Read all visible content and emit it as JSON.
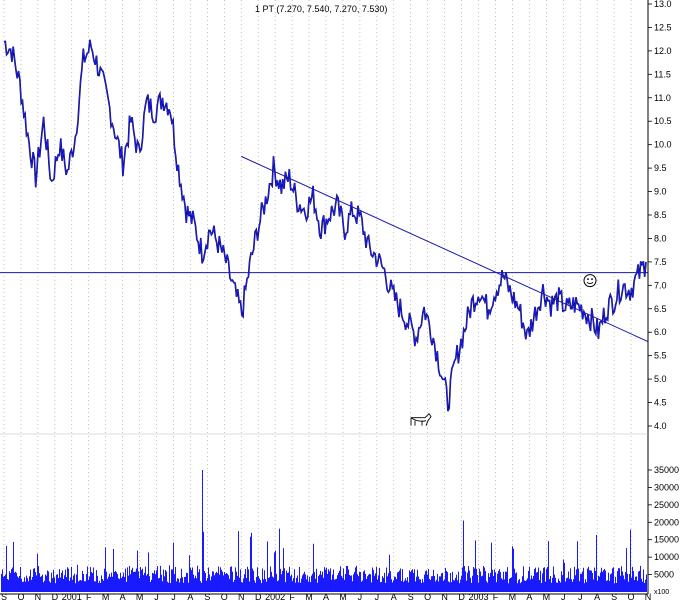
{
  "title": "1 PT (7.270, 7.540, 7.270, 7.530)",
  "chart_data": [
    {
      "type": "line",
      "title": "1 PT (7.270, 7.540, 7.270, 7.530)",
      "xlabel": "",
      "ylabel": "",
      "ylim": [
        4.0,
        13.0
      ],
      "y_ticks": [
        "4.0",
        "4.5",
        "5.0",
        "5.5",
        "6.0",
        "6.5",
        "7.0",
        "7.5",
        "8.0",
        "8.5",
        "9.0",
        "9.5",
        "10.0",
        "10.5",
        "11.0",
        "11.5",
        "12.0",
        "12.5",
        "13.0"
      ],
      "x_ticks": [
        "S",
        "O",
        "N",
        "D",
        "2001",
        "F",
        "M",
        "A",
        "M",
        "J",
        "J",
        "A",
        "S",
        "O",
        "N",
        "D",
        "2002",
        "F",
        "M",
        "A",
        "M",
        "J",
        "J",
        "A",
        "S",
        "O",
        "N",
        "D",
        "2003",
        "F",
        "M",
        "A",
        "M",
        "J",
        "J",
        "A",
        "S",
        "O",
        "N"
      ],
      "grid": true,
      "series": [
        {
          "values": [
            12.2,
            12.0,
            11.3,
            10.2,
            9.3,
            10.5,
            9.2,
            10.0,
            9.4,
            10.2,
            11.8,
            12.1,
            11.6,
            11.0,
            10.3,
            9.6,
            10.5,
            9.8,
            10.9,
            10.7,
            11.0,
            10.8,
            9.5,
            8.6,
            8.3,
            7.7,
            8.2,
            7.9,
            7.5,
            6.9,
            6.4,
            7.4,
            8.2,
            8.8,
            9.5,
            9.1,
            9.3,
            8.8,
            8.6,
            8.9,
            8.2,
            8.5,
            8.7,
            8.2,
            8.6,
            8.4,
            7.8,
            7.6,
            7.3,
            6.8,
            6.5,
            6.2,
            5.9,
            6.5,
            6.0,
            5.3,
            4.5,
            5.4,
            6.0,
            6.6,
            6.9,
            6.5,
            6.9,
            7.2,
            6.8,
            6.5,
            5.9,
            6.4,
            6.9,
            6.6,
            6.7,
            6.5,
            6.6,
            6.5,
            6.3,
            6.0,
            6.5,
            6.7,
            7.0,
            6.9,
            7.2,
            7.5
          ]
        }
      ],
      "trendline": {
        "from_month": "N",
        "from_year": "2001",
        "from_value": 9.75,
        "to_month": "N",
        "to_year": "2003",
        "to_value": 5.8
      },
      "hline": 7.27,
      "annotations": [
        {
          "text": "smiley-icon",
          "value": 7.1
        },
        {
          "text": "bull-icon",
          "value": 4.05
        }
      ]
    },
    {
      "type": "bar",
      "title": "",
      "ylim": [
        0,
        35000
      ],
      "y_ticks": [
        "5000",
        "10000",
        "15000",
        "20000",
        "25000",
        "30000",
        "35000"
      ],
      "unit_label": "x100",
      "series": [
        {
          "values": []
        }
      ]
    }
  ]
}
